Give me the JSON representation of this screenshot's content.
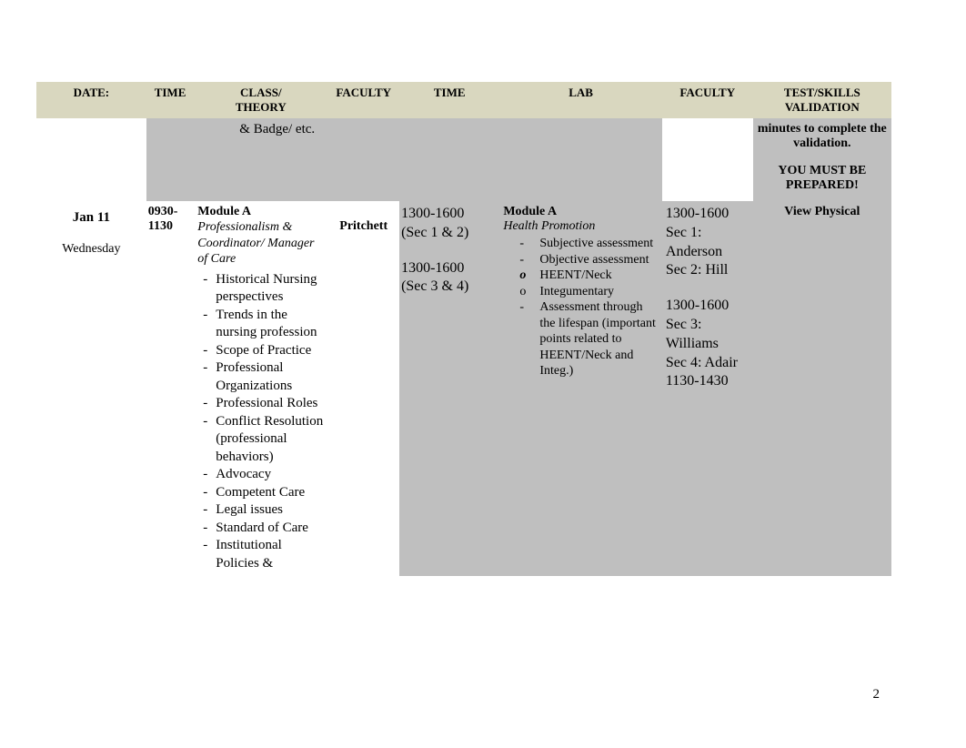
{
  "headers": {
    "date": "DATE:",
    "time1": "TIME",
    "class": "CLASS/\nTHEORY",
    "faculty1": "FACULTY",
    "time2": "TIME",
    "lab": "LAB",
    "faculty2": "FACULTY",
    "test": "TEST/SKILLS VALIDATION"
  },
  "top_cont": {
    "class_tail": "& Badge/ etc.",
    "test_tail1": "minutes to complete the validation.",
    "test_tail2": "YOU MUST BE PREPARED!"
  },
  "row": {
    "date": "Jan 11",
    "dow": "Wednesday",
    "time1": "0930-1130",
    "class_title": "Module A",
    "class_subtitle": "Professionalism & Coordinator/ Manager of Care",
    "class_items": [
      "Historical Nursing perspectives",
      "Trends in the nursing profession",
      "Scope of Practice",
      "Professional Organizations",
      "Professional Roles",
      "Conflict Resolution (professional behaviors)",
      "Advocacy",
      "Competent Care",
      "Legal issues",
      "Standard of Care",
      "Institutional Policies &"
    ],
    "faculty1": "Pritchett",
    "time2_a": "1300-1600",
    "time2_a_sec": "(Sec 1 & 2)",
    "time2_b": "1300-1600",
    "time2_b_sec": "(Sec 3 & 4)",
    "lab_title": "Module A",
    "lab_subtitle": "Health Promotion",
    "lab_items": [
      {
        "bullet": "dash",
        "text": "Subjective assessment"
      },
      {
        "bullet": "dash",
        "text": "Objective assessment"
      },
      {
        "bullet": "o-it",
        "text": "HEENT/Neck"
      },
      {
        "bullet": "o",
        "text": "Integumentary"
      },
      {
        "bullet": "dash",
        "text": "Assessment through the lifespan (important points related to HEENT/Neck and Integ.)"
      }
    ],
    "fac2_a": "1300-1600",
    "fac2_b": "Sec 1: Anderson",
    "fac2_c": "Sec 2: Hill",
    "fac2_d": "1300-1600",
    "fac2_e": "Sec 3: Williams",
    "fac2_f": "Sec 4: Adair",
    "fac2_g": "1130-1430",
    "test": "View Physical"
  },
  "page_number": "2",
  "colors": {
    "header_bg": "#d9d7bf",
    "shade_bg": "#bfbfbf",
    "white": "#ffffff"
  }
}
